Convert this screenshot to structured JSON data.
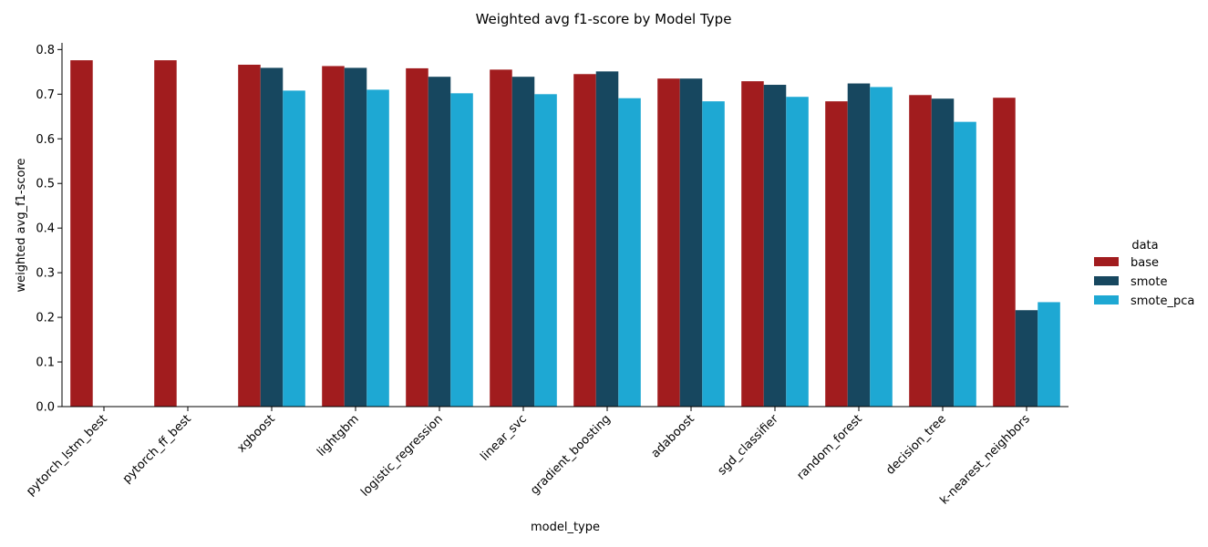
{
  "chart_data": {
    "type": "bar",
    "title": "Weighted avg f1-score by Model Type",
    "xlabel": "model_type",
    "ylabel": "weighted avg_f1-score",
    "ylim": [
      0,
      0.815
    ],
    "yticks": [
      "0.0",
      "0.1",
      "0.2",
      "0.3",
      "0.4",
      "0.5",
      "0.6",
      "0.7",
      "0.8"
    ],
    "grid": false,
    "legend_title": "data",
    "legend_position": "right",
    "categories": [
      "pytorch_lstm_best",
      "pytorch_ff_best",
      "xgboost",
      "lightgbm",
      "logistic_regression",
      "linear_svc",
      "gradient_boosting",
      "adaboost",
      "sgd_classifier",
      "random_forest",
      "decision_tree",
      "k-nearest_neighbors"
    ],
    "series": [
      {
        "name": "base",
        "color": "#a11c1e",
        "values": [
          0.776,
          0.776,
          0.766,
          0.763,
          0.758,
          0.755,
          0.745,
          0.735,
          0.729,
          0.684,
          0.698,
          0.692
        ]
      },
      {
        "name": "smote",
        "color": "#17475f",
        "values": [
          null,
          null,
          0.759,
          0.759,
          0.739,
          0.739,
          0.751,
          0.735,
          0.721,
          0.724,
          0.69,
          0.216
        ]
      },
      {
        "name": "smote_pca",
        "color": "#1ea8d3",
        "values": [
          null,
          null,
          0.708,
          0.71,
          0.702,
          0.7,
          0.691,
          0.684,
          0.694,
          0.716,
          0.638,
          0.234
        ]
      }
    ]
  }
}
